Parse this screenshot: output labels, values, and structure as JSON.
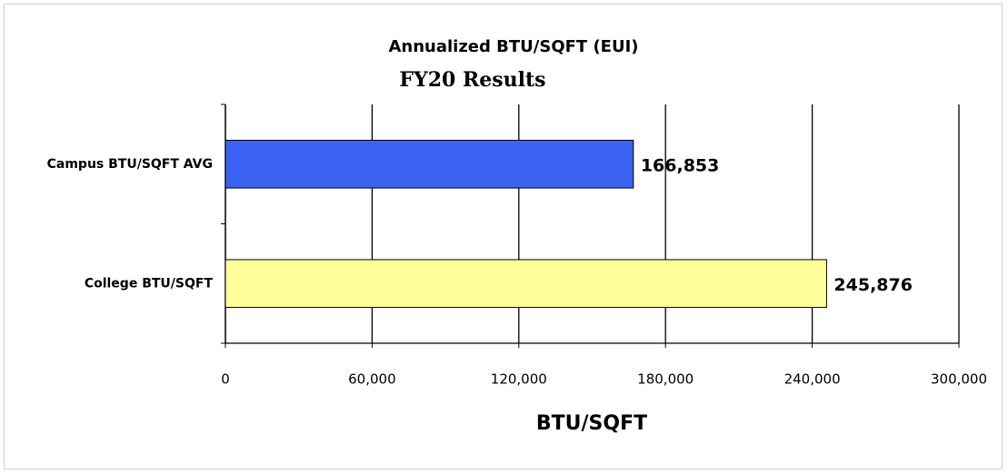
{
  "chart_data": {
    "type": "barh",
    "title": "Annualized BTU/SQFT (EUI)",
    "subtitle": "FY20 Results",
    "xlabel": "BTU/SQFT",
    "categories": [
      "Campus BTU/SQFT AVG",
      "College BTU/SQFT"
    ],
    "values": [
      166853,
      245876
    ],
    "value_labels": [
      "166,853",
      "245,876"
    ],
    "colors": [
      "#3b63f2",
      "#ffff99"
    ],
    "xlim": [
      0,
      300000
    ],
    "xticks": [
      0,
      {
        "value": 60000,
        "label": "60,000"
      },
      {
        "value": 120000,
        "label": "120,000"
      },
      {
        "value": 180000,
        "label": "180,000"
      },
      {
        "value": 240000,
        "label": "240,000"
      },
      {
        "value": 300000,
        "label": "300,000"
      }
    ],
    "grid": true
  }
}
